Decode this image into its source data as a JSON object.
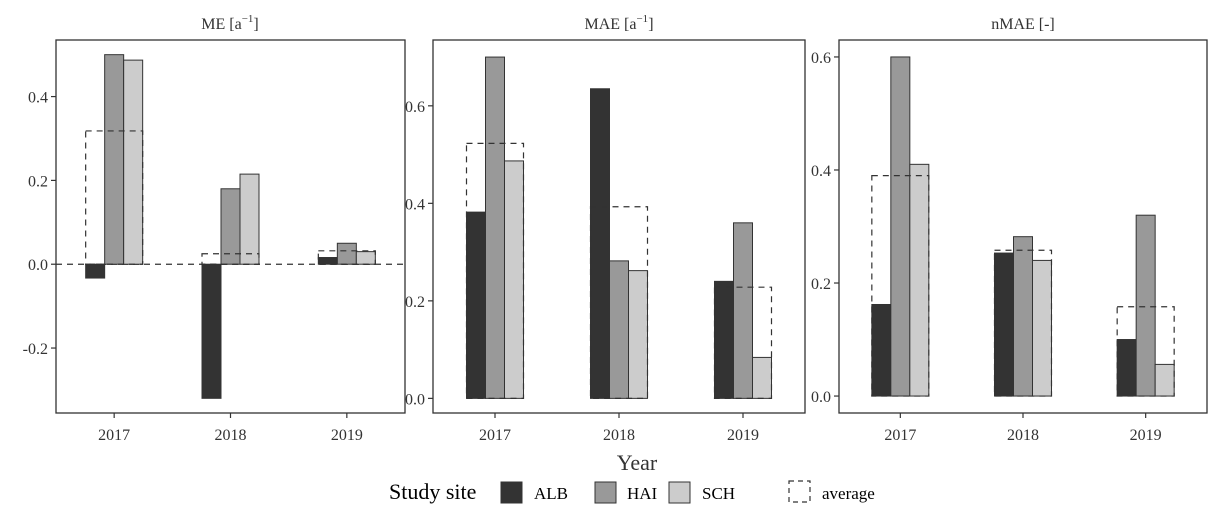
{
  "chart_data": [
    {
      "type": "bar",
      "title": "ME [a",
      "title_sup": "−1",
      "title_suffix": "]",
      "categories": [
        "2017",
        "2018",
        "2019"
      ],
      "series": [
        {
          "name": "ALB",
          "values": [
            -0.033,
            -0.32,
            0.016
          ]
        },
        {
          "name": "HAI",
          "values": [
            0.5,
            0.18,
            0.05
          ]
        },
        {
          "name": "SCH",
          "values": [
            0.487,
            0.215,
            0.03
          ]
        }
      ],
      "average": [
        0.318,
        0.025,
        0.032
      ],
      "ylim": [
        -0.355,
        0.535
      ],
      "yticks": [
        -0.2,
        0.0,
        0.2,
        0.4
      ],
      "ytick_labels": [
        "-0.2",
        "0.0",
        "0.2",
        "0.4"
      ],
      "zero_line": true
    },
    {
      "type": "bar",
      "title": "MAE [a",
      "title_sup": "−1",
      "title_suffix": "]",
      "categories": [
        "2017",
        "2018",
        "2019"
      ],
      "series": [
        {
          "name": "ALB",
          "values": [
            0.382,
            0.635,
            0.24
          ]
        },
        {
          "name": "HAI",
          "values": [
            0.7,
            0.282,
            0.36
          ]
        },
        {
          "name": "SCH",
          "values": [
            0.487,
            0.262,
            0.084
          ]
        }
      ],
      "average": [
        0.523,
        0.393,
        0.228
      ],
      "ylim": [
        -0.03,
        0.735
      ],
      "yticks": [
        0.0,
        0.2,
        0.4,
        0.6
      ],
      "ytick_labels": [
        "0.0",
        "0.2",
        "0.4",
        "0.6"
      ]
    },
    {
      "type": "bar",
      "title": "nMAE [-]",
      "title_sup": "",
      "title_suffix": "",
      "categories": [
        "2017",
        "2018",
        "2019"
      ],
      "series": [
        {
          "name": "ALB",
          "values": [
            0.162,
            0.253,
            0.1
          ]
        },
        {
          "name": "HAI",
          "values": [
            0.6,
            0.282,
            0.32
          ]
        },
        {
          "name": "SCH",
          "values": [
            0.41,
            0.24,
            0.056
          ]
        }
      ],
      "average": [
        0.39,
        0.258,
        0.158
      ],
      "ylim": [
        -0.03,
        0.63
      ],
      "yticks": [
        0.0,
        0.2,
        0.4,
        0.6
      ],
      "ytick_labels": [
        "0.0",
        "0.2",
        "0.4",
        "0.6"
      ]
    }
  ],
  "xlabel": "Year",
  "legend": {
    "title": "Study site",
    "items": [
      {
        "name": "ALB",
        "color": "#333333"
      },
      {
        "name": "HAI",
        "color": "#999999"
      },
      {
        "name": "SCH",
        "color": "#cccccc"
      }
    ],
    "average_label": "average"
  }
}
